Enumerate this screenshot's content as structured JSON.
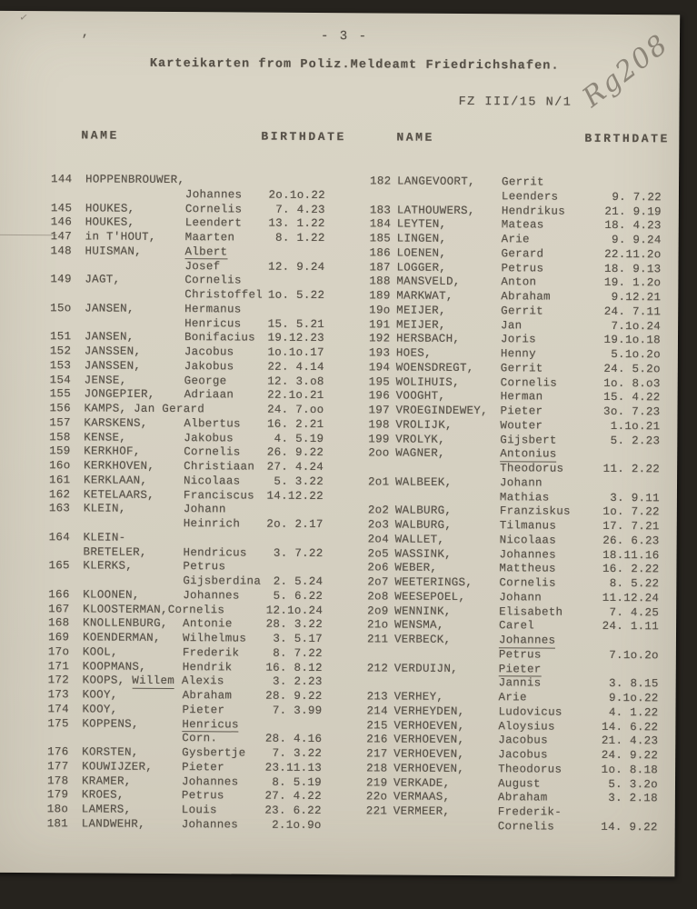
{
  "page": {
    "page_number": "- 3 -",
    "title": "Karteikarten from Poliz.Meldeamt Friedrichshafen.",
    "reference": "FZ III/15 N/1",
    "handwritten_mark": "Rg208",
    "corner_tick": "✓",
    "comma_mark": ","
  },
  "colors": {
    "paper": "#d6d1c2",
    "ink": "#575148",
    "pencil": "#7a7366",
    "background": "#26231e"
  },
  "columns": {
    "headers": [
      "NAME",
      "BIRTHDATE",
      "NAME",
      "BIRTHDATE"
    ],
    "left": [
      [
        "144",
        "HOPPENBROUWER,",
        "",
        ""
      ],
      [
        "",
        "",
        "Johannes",
        "2o.1o.22"
      ],
      [
        "145",
        "HOUKES,",
        "Cornelis",
        "7. 4.23"
      ],
      [
        "146",
        "HOUKES,",
        "Leendert",
        "13. 1.22"
      ],
      [
        "147",
        "in T'HOUT,",
        "Maarten",
        "8. 1.22"
      ],
      [
        "148",
        "HUISMAN,",
        "_Albert_",
        ""
      ],
      [
        "",
        "",
        "Josef",
        "12. 9.24"
      ],
      [
        "149",
        "JAGT,",
        "Cornelis",
        ""
      ],
      [
        "",
        "",
        "Christoffel",
        "1o. 5.22"
      ],
      [
        "15o",
        "JANSEN,",
        "Hermanus",
        ""
      ],
      [
        "",
        "",
        "Henricus",
        "15. 5.21"
      ],
      [
        "151",
        "JANSEN,",
        "Bonifacius",
        "19.12.23"
      ],
      [
        "152",
        "JANSSEN,",
        "Jacobus",
        "1o.1o.17"
      ],
      [
        "153",
        "JANSSEN,",
        "Jakobus",
        "22. 4.14"
      ],
      [
        "154",
        "JENSE,",
        "George",
        "12. 3.o8"
      ],
      [
        "155",
        "JONGEPIER,",
        "Adriaan",
        "22.1o.21"
      ],
      [
        "156",
        "KAMPS, Jan Gerard",
        "",
        "24. 7.oo"
      ],
      [
        "157",
        "KARSKENS,",
        "Albertus",
        "16. 2.21"
      ],
      [
        "158",
        "KENSE,",
        "Jakobus",
        "4. 5.19"
      ],
      [
        "159",
        "KERKHOF,",
        "Cornelis",
        "26. 9.22"
      ],
      [
        "16o",
        "KERKHOVEN,",
        "Christiaan",
        "27. 4.24"
      ],
      [
        "161",
        "KERKLAAN,",
        "Nicolaas",
        "5. 3.22"
      ],
      [
        "162",
        "KETELAARS,",
        "Franciscus",
        "14.12.22"
      ],
      [
        "163",
        "KLEIN,",
        "Johann",
        ""
      ],
      [
        "",
        "",
        "Heinrich",
        "2o. 2.17"
      ],
      [
        "164",
        "KLEIN-",
        "",
        ""
      ],
      [
        "",
        "BRETELER,",
        "Hendricus",
        "3. 7.22"
      ],
      [
        "165",
        "KLERKS,",
        "Petrus",
        ""
      ],
      [
        "",
        "",
        "Gijsberdina",
        "2. 5.24"
      ],
      [
        "166",
        "KLOONEN,",
        "Johannes",
        "5. 6.22"
      ],
      [
        "167",
        "KLOOSTERMAN,Cornelis",
        "",
        "12.1o.24"
      ],
      [
        "168",
        "KNOLLENBURG,",
        "Antonie",
        "28. 3.22"
      ],
      [
        "169",
        "KOENDERMAN,",
        "Wilhelmus",
        "3. 5.17"
      ],
      [
        "17o",
        "KOOL,",
        "Frederik",
        "8. 7.22"
      ],
      [
        "171",
        "KOOPMANS,",
        "Hendrik",
        "16. 8.12"
      ],
      [
        "172",
        "KOOPS, _Willem_ Alexis",
        "",
        "3. 2.23"
      ],
      [
        "173",
        "KOOY,",
        "Abraham",
        "28. 9.22"
      ],
      [
        "174",
        "KOOY,",
        "Pieter",
        "7. 3.99"
      ],
      [
        "175",
        "KOPPENS,",
        "_Henricus_",
        ""
      ],
      [
        "",
        "",
        "Corn.",
        "28. 4.16"
      ],
      [
        "176",
        "KORSTEN,",
        "Gysbertje",
        "7. 3.22"
      ],
      [
        "177",
        "KOUWIJZER,",
        "Pieter",
        "23.11.13"
      ],
      [
        "178",
        "KRAMER,",
        "Johannes",
        "8. 5.19"
      ],
      [
        "179",
        "KROES,",
        "Petrus",
        "27. 4.22"
      ],
      [
        "18o",
        "LAMERS,",
        "Louis",
        "23. 6.22"
      ],
      [
        "181",
        "LANDWEHR,",
        "Johannes",
        "2.1o.9o"
      ]
    ],
    "right": [
      [
        "182",
        "LANGEVOORT,",
        "Gerrit",
        ""
      ],
      [
        "",
        "",
        "Leenders",
        "9. 7.22"
      ],
      [
        "183",
        "LATHOUWERS,",
        "Hendrikus",
        "21. 9.19"
      ],
      [
        "184",
        "LEYTEN,",
        "Mateas",
        "18. 4.23"
      ],
      [
        "185",
        "LINGEN,",
        "Arie",
        "9. 9.24"
      ],
      [
        "186",
        "LOENEN,",
        "Gerard",
        "22.11.2o"
      ],
      [
        "187",
        "LOGGER,",
        "Petrus",
        "18. 9.13"
      ],
      [
        "188",
        "MANSVELD,",
        "Anton",
        "19. 1.2o"
      ],
      [
        "189",
        "MARKWAT,",
        "Abraham",
        "9.12.21"
      ],
      [
        "19o",
        "MEIJER,",
        "Gerrit",
        "24. 7.11"
      ],
      [
        "191",
        "MEIJER,",
        "Jan",
        "7.1o.24"
      ],
      [
        "192",
        "HERSBACH,",
        "Joris",
        "19.1o.18"
      ],
      [
        "193",
        "HOES,",
        "Henny",
        "5.1o.2o"
      ],
      [
        "194",
        "WOENSDREGT,",
        "Gerrit",
        "24. 5.2o"
      ],
      [
        "195",
        "WOLIHUIS,",
        "Cornelis",
        "1o. 8.o3"
      ],
      [
        "196",
        "VOOGHT,",
        "Herman",
        "15. 4.22"
      ],
      [
        "197",
        "VROEGINDEWEY,",
        "Pieter",
        "3o. 7.23"
      ],
      [
        "198",
        "VROLIJK,",
        "Wouter",
        "1.1o.21"
      ],
      [
        "199",
        "VROLYK,",
        "Gijsbert",
        "5. 2.23"
      ],
      [
        "2oo",
        "WAGNER,",
        "_Antonius_",
        ""
      ],
      [
        "",
        "",
        "Theodorus",
        "11. 2.22"
      ],
      [
        "2o1",
        "WALBEEK,",
        "Johann",
        ""
      ],
      [
        "",
        "",
        "Mathias",
        "3. 9.11"
      ],
      [
        "2o2",
        "WALBURG,",
        "Franziskus",
        "1o. 7.22"
      ],
      [
        "2o3",
        "WALBURG,",
        "Tilmanus",
        "17. 7.21"
      ],
      [
        "2o4",
        "WALLET,",
        "Nicolaas",
        "26. 6.23"
      ],
      [
        "2o5",
        "WASSINK,",
        "Johannes",
        "18.11.16"
      ],
      [
        "2o6",
        "WEBER,",
        "Mattheus",
        "16. 2.22"
      ],
      [
        "2o7",
        "WEETERINGS,",
        "Cornelis",
        "8. 5.22"
      ],
      [
        "2o8",
        "WEESEPOEL,",
        "Johann",
        "11.12.24"
      ],
      [
        "2o9",
        "WENNINK,",
        "Elisabeth",
        "7. 4.25"
      ],
      [
        "21o",
        "WENSMA,",
        "Carel",
        "24. 1.11"
      ],
      [
        "211",
        "VERBECK,",
        "_Johannes_",
        ""
      ],
      [
        "",
        "",
        "Petrus",
        "7.1o.2o"
      ],
      [
        "212",
        "VERDUIJN,",
        "_Pieter_",
        ""
      ],
      [
        "",
        "",
        "Jannis",
        "3. 8.15"
      ],
      [
        "213",
        "VERHEY,",
        "Arie",
        "9.1o.22"
      ],
      [
        "214",
        "VERHEYDEN,",
        "Ludovicus",
        "4. 1.22"
      ],
      [
        "215",
        "VERHOEVEN,",
        "Aloysius",
        "14. 6.22"
      ],
      [
        "216",
        "VERHOEVEN,",
        "Jacobus",
        "21. 4.23"
      ],
      [
        "217",
        "VERHOEVEN,",
        "Jacobus",
        "24. 9.22"
      ],
      [
        "218",
        "VERHOEVEN,",
        "Theodorus",
        "1o. 8.18"
      ],
      [
        "219",
        "VERKADE,",
        "August",
        "5. 3.2o"
      ],
      [
        "22o",
        "VERMAAS,",
        "Abraham",
        "3. 2.18"
      ],
      [
        "221",
        "VERMEER,",
        "Frederik-",
        ""
      ],
      [
        "",
        "",
        "Cornelis",
        "14. 9.22"
      ]
    ]
  }
}
